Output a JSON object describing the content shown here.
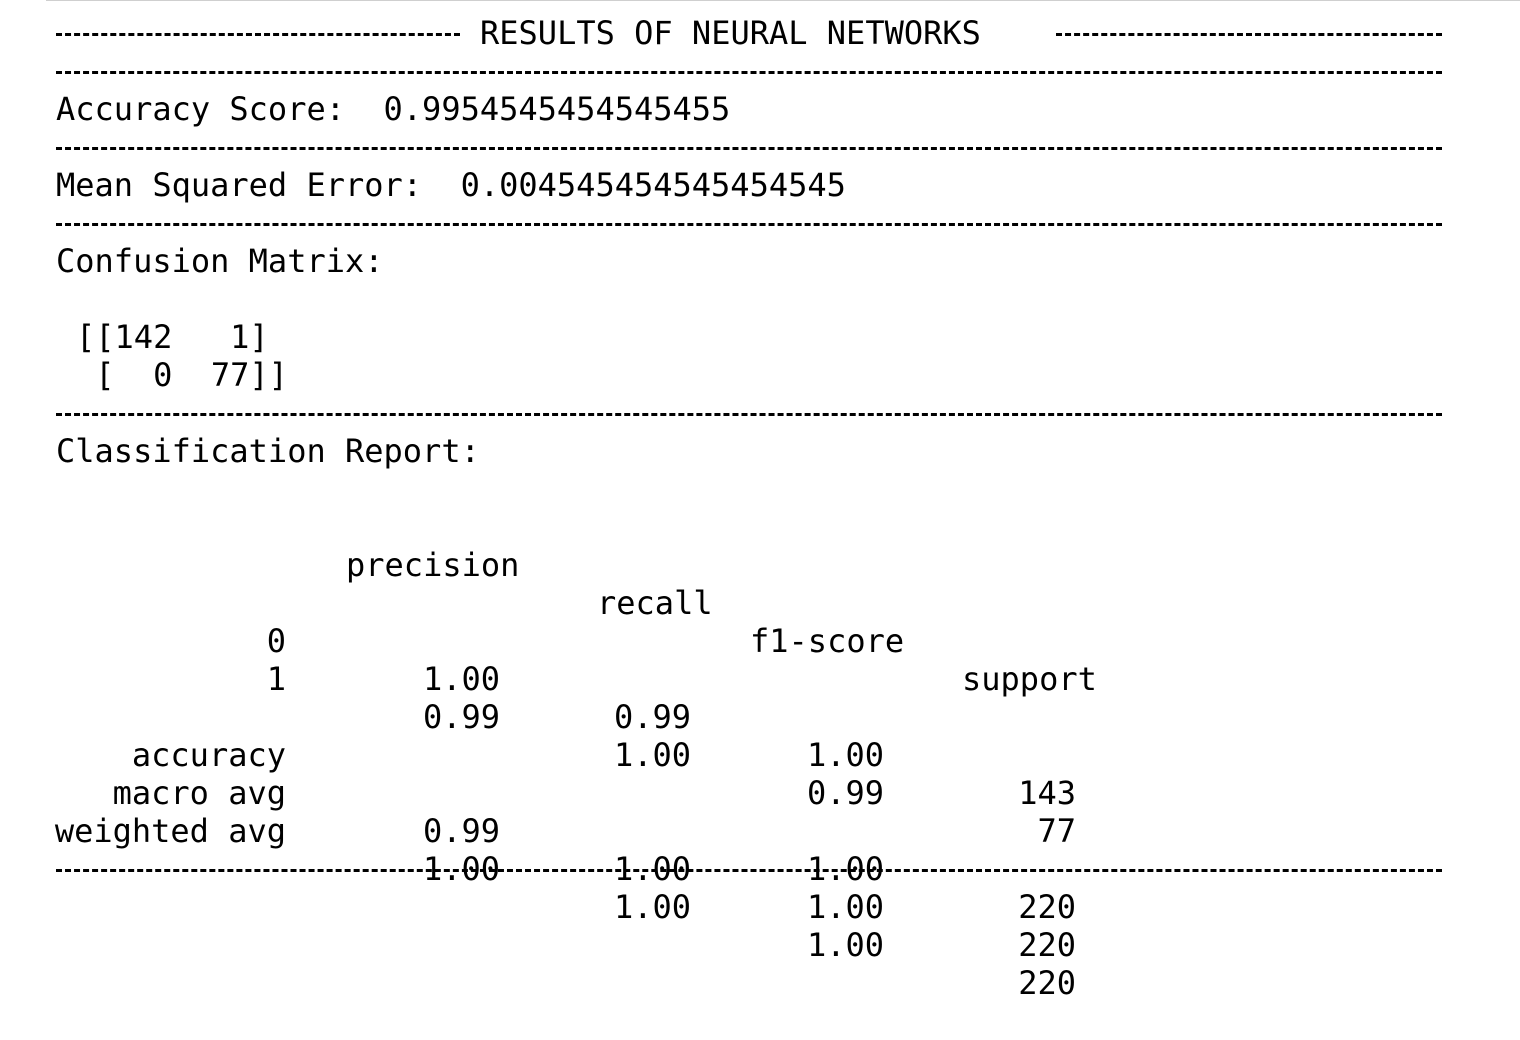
{
  "title": "RESULTS OF NEURAL NETWORKS",
  "accuracy": {
    "label": "Accuracy Score:",
    "value": "0.9954545454545455"
  },
  "mse": {
    "label": "Mean Squared Error:",
    "value": "0.004545454545454545"
  },
  "confusion": {
    "label": "Confusion Matrix:",
    "rows": [
      "[[142   1]",
      " [  0  77]]"
    ]
  },
  "report": {
    "label": "Classification Report:",
    "headers": [
      "precision",
      "recall",
      "f1-score",
      "support"
    ],
    "rows": [
      {
        "label": "0",
        "precision": "1.00",
        "recall": "0.99",
        "f1": "1.00",
        "support": "143"
      },
      {
        "label": "1",
        "precision": "0.99",
        "recall": "1.00",
        "f1": "0.99",
        "support": "77"
      }
    ],
    "summary": [
      {
        "label": "accuracy",
        "precision": "",
        "recall": "",
        "f1": "1.00",
        "support": "220"
      },
      {
        "label": "macro avg",
        "precision": "0.99",
        "recall": "1.00",
        "f1": "1.00",
        "support": "220"
      },
      {
        "label": "weighted avg",
        "precision": "1.00",
        "recall": "1.00",
        "f1": "1.00",
        "support": "220"
      }
    ]
  }
}
